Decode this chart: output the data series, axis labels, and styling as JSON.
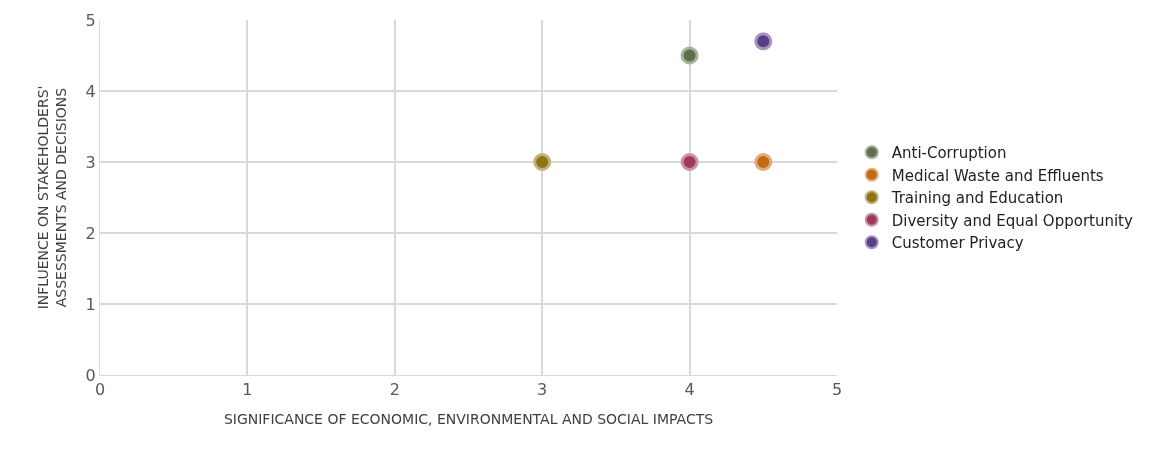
{
  "chart_data": {
    "type": "scatter",
    "xlabel": "SIGNIFICANCE OF ECONOMIC, ENVIRONMENTAL AND SOCIAL IMPACTS",
    "ylabel": "INFLUENCE ON STAKEHOLDERS'\nASSESSMENTS AND DECISIONS",
    "xlim": [
      0,
      5
    ],
    "xticks": [
      0,
      1,
      2,
      3,
      4,
      5
    ],
    "ylim": [
      0,
      5
    ],
    "yticks": [
      0,
      1,
      2,
      3,
      4,
      5
    ],
    "grid": true,
    "legend": "right",
    "marker": "circle",
    "series": [
      {
        "name": "Anti-Corruption",
        "color": "#5e7048",
        "x": [
          4
        ],
        "values": [
          4.5
        ]
      },
      {
        "name": "Medical Waste and Effluents",
        "color": "#c46a10",
        "x": [
          4.5
        ],
        "values": [
          3
        ]
      },
      {
        "name": "Training and Education",
        "color": "#8e7412",
        "x": [
          3
        ],
        "values": [
          3
        ]
      },
      {
        "name": "Diversity and Equal Opportunity",
        "color": "#a03c5a",
        "x": [
          4
        ],
        "values": [
          3
        ]
      },
      {
        "name": "Customer Privacy",
        "color": "#5b3d87",
        "x": [
          4.5
        ],
        "values": [
          4.7
        ]
      }
    ]
  }
}
